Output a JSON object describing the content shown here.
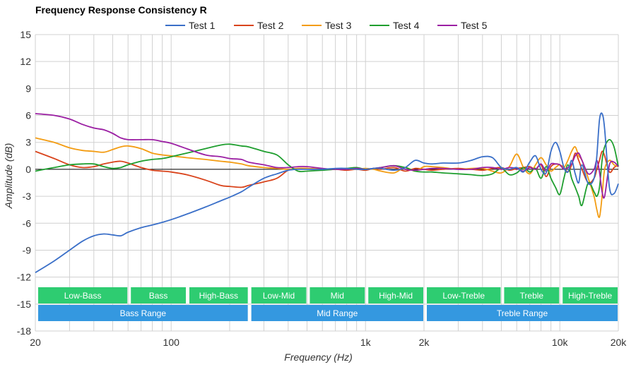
{
  "chart_data": {
    "type": "line",
    "title": "Frequency Response Consistency R",
    "xlabel": "Frequency (Hz)",
    "ylabel": "Amplitude (dB)",
    "x_scale": "log",
    "xlim": [
      20,
      20000
    ],
    "ylim": [
      -18,
      15
    ],
    "grid": true,
    "legend_position": "top-center",
    "x_ticks": [
      {
        "value": 20,
        "label": "20"
      },
      {
        "value": 100,
        "label": "100"
      },
      {
        "value": 1000,
        "label": "1k"
      },
      {
        "value": 2000,
        "label": "2k"
      },
      {
        "value": 10000,
        "label": "10k"
      },
      {
        "value": 20000,
        "label": "20k"
      }
    ],
    "y_ticks": [
      15,
      12,
      9,
      6,
      3,
      0,
      -3,
      -6,
      -9,
      -12,
      -15,
      -18
    ],
    "bands": [
      {
        "row": "upper",
        "label": "Low-Bass",
        "from": 20,
        "to": 60,
        "color": "#2ecc71"
      },
      {
        "row": "upper",
        "label": "Bass",
        "from": 60,
        "to": 120,
        "color": "#2ecc71"
      },
      {
        "row": "upper",
        "label": "High-Bass",
        "from": 120,
        "to": 250,
        "color": "#2ecc71"
      },
      {
        "row": "upper",
        "label": "Low-Mid",
        "from": 250,
        "to": 500,
        "color": "#2ecc71"
      },
      {
        "row": "upper",
        "label": "Mid",
        "from": 500,
        "to": 1000,
        "color": "#2ecc71"
      },
      {
        "row": "upper",
        "label": "High-Mid",
        "from": 1000,
        "to": 2000,
        "color": "#2ecc71"
      },
      {
        "row": "upper",
        "label": "Low-Treble",
        "from": 2000,
        "to": 5000,
        "color": "#2ecc71"
      },
      {
        "row": "upper",
        "label": "Treble",
        "from": 5000,
        "to": 10000,
        "color": "#2ecc71"
      },
      {
        "row": "upper",
        "label": "High-Treble",
        "from": 10000,
        "to": 20000,
        "color": "#2ecc71"
      },
      {
        "row": "lower",
        "label": "Bass Range",
        "from": 20,
        "to": 250,
        "color": "#3498e0"
      },
      {
        "row": "lower",
        "label": "Mid Range",
        "from": 250,
        "to": 2000,
        "color": "#3498e0"
      },
      {
        "row": "lower",
        "label": "Treble Range",
        "from": 2000,
        "to": 20000,
        "color": "#3498e0"
      }
    ],
    "series": [
      {
        "name": "Test 1",
        "color": "#3a6fc8",
        "x": [
          20,
          25,
          30,
          35,
          40,
          45,
          50,
          55,
          60,
          70,
          80,
          90,
          100,
          120,
          150,
          180,
          200,
          230,
          250,
          300,
          350,
          400,
          450,
          500,
          600,
          700,
          800,
          900,
          1000,
          1100,
          1200,
          1400,
          1600,
          1800,
          2000,
          2200,
          2500,
          3000,
          3500,
          4000,
          4500,
          5000,
          5500,
          6000,
          6500,
          7000,
          7500,
          8000,
          8500,
          9000,
          9500,
          10000,
          10500,
          11000,
          11500,
          12000,
          12500,
          13000,
          14000,
          15000,
          15500,
          16000,
          16500,
          17000,
          18000,
          19000,
          20000
        ],
        "y": [
          -11.5,
          -10.2,
          -9.0,
          -8.0,
          -7.4,
          -7.2,
          -7.3,
          -7.4,
          -7.0,
          -6.5,
          -6.2,
          -5.9,
          -5.6,
          -5.0,
          -4.2,
          -3.5,
          -3.1,
          -2.5,
          -2.0,
          -1.0,
          -0.5,
          -0.1,
          0.0,
          0.0,
          0.0,
          0.1,
          0.1,
          0.0,
          0.0,
          0.1,
          0.1,
          -0.1,
          0.2,
          1.0,
          0.7,
          0.6,
          0.7,
          0.7,
          1.0,
          1.4,
          1.3,
          0.2,
          0.0,
          0.2,
          -0.3,
          0.8,
          1.5,
          0.0,
          -0.4,
          2.0,
          3.0,
          2.0,
          0.2,
          -0.3,
          1.0,
          -0.5,
          -1.5,
          0.5,
          -1.6,
          -1.0,
          1.5,
          5.5,
          6.2,
          4.5,
          -2.0,
          -2.7,
          -1.6
        ]
      },
      {
        "name": "Test 2",
        "color": "#d9441c",
        "x": [
          20,
          25,
          30,
          35,
          40,
          45,
          50,
          55,
          60,
          70,
          80,
          90,
          100,
          120,
          150,
          180,
          200,
          230,
          250,
          300,
          350,
          400,
          450,
          500,
          600,
          700,
          800,
          900,
          1000,
          1100,
          1200,
          1400,
          1600,
          1800,
          2000,
          2200,
          2500,
          3000,
          3500,
          4000,
          4500,
          5000,
          5500,
          6000,
          6500,
          7000,
          7500,
          8000,
          8500,
          9000,
          9500,
          10000,
          10500,
          11000,
          11500,
          12000,
          12500,
          13000,
          14000,
          15000,
          15500,
          16000,
          16500,
          17000,
          18000,
          19000,
          20000
        ],
        "y": [
          2.0,
          1.2,
          0.5,
          0.2,
          0.3,
          0.6,
          0.8,
          0.9,
          0.7,
          0.2,
          -0.1,
          -0.2,
          -0.3,
          -0.6,
          -1.2,
          -1.8,
          -1.9,
          -2.0,
          -1.8,
          -1.4,
          -1.0,
          -0.1,
          0.1,
          0.1,
          0.0,
          0.0,
          -0.1,
          0.0,
          -0.1,
          0.1,
          0.0,
          0.2,
          -0.2,
          0.1,
          0.0,
          -0.1,
          0.0,
          0.1,
          0.0,
          -0.1,
          0.1,
          0.2,
          -0.1,
          0.1,
          0.2,
          0.3,
          0.0,
          0.5,
          -0.8,
          0.3,
          0.6,
          0.5,
          0.2,
          -0.3,
          0.5,
          1.8,
          1.0,
          0.0,
          -1.5,
          -1.0,
          0.0,
          1.0,
          2.0,
          1.5,
          -0.3,
          0.2,
          0.5
        ]
      },
      {
        "name": "Test 3",
        "color": "#f39c12",
        "x": [
          20,
          25,
          30,
          35,
          40,
          45,
          50,
          55,
          60,
          70,
          80,
          90,
          100,
          120,
          150,
          180,
          200,
          230,
          250,
          300,
          350,
          400,
          450,
          500,
          600,
          700,
          800,
          900,
          1000,
          1100,
          1200,
          1400,
          1600,
          1800,
          2000,
          2200,
          2500,
          3000,
          3500,
          4000,
          4500,
          5000,
          5500,
          6000,
          6500,
          7000,
          7500,
          8000,
          8500,
          9000,
          9500,
          10000,
          10500,
          11000,
          11500,
          12000,
          12500,
          13000,
          14000,
          15000,
          15500,
          16000,
          16500,
          17000,
          18000,
          19000,
          20000
        ],
        "y": [
          3.5,
          3.0,
          2.4,
          2.1,
          2.0,
          1.9,
          2.2,
          2.5,
          2.6,
          2.3,
          1.8,
          1.6,
          1.5,
          1.3,
          1.1,
          0.9,
          0.8,
          0.6,
          0.4,
          0.2,
          0.1,
          0.0,
          0.1,
          0.1,
          0.0,
          0.0,
          0.1,
          0.0,
          0.1,
          0.0,
          -0.2,
          -0.4,
          0.2,
          -0.2,
          0.3,
          0.3,
          0.2,
          0.0,
          0.1,
          0.1,
          -0.2,
          -0.4,
          0.3,
          1.7,
          0.2,
          -0.5,
          0.5,
          1.3,
          0.5,
          -0.2,
          0.2,
          0.5,
          0.2,
          1.0,
          2.0,
          2.5,
          1.5,
          1.0,
          -1.0,
          -3.0,
          -4.5,
          -5.3,
          -3.0,
          0.0,
          1.0,
          0.5,
          0.3
        ]
      },
      {
        "name": "Test 4",
        "color": "#1e9e2e",
        "x": [
          20,
          25,
          30,
          35,
          40,
          45,
          50,
          55,
          60,
          70,
          80,
          90,
          100,
          120,
          150,
          180,
          200,
          230,
          250,
          300,
          350,
          400,
          450,
          500,
          600,
          700,
          800,
          900,
          1000,
          1100,
          1200,
          1400,
          1600,
          1800,
          2000,
          2200,
          2500,
          3000,
          3500,
          4000,
          4500,
          5000,
          5500,
          6000,
          6500,
          7000,
          7500,
          8000,
          8500,
          9000,
          9500,
          10000,
          10500,
          11000,
          11500,
          12000,
          12500,
          13000,
          14000,
          15000,
          15500,
          16000,
          16500,
          17000,
          18000,
          19000,
          20000
        ],
        "y": [
          -0.2,
          0.2,
          0.5,
          0.6,
          0.6,
          0.3,
          0.1,
          0.2,
          0.5,
          0.9,
          1.1,
          1.2,
          1.4,
          1.8,
          2.3,
          2.7,
          2.8,
          2.6,
          2.5,
          2.0,
          1.6,
          0.5,
          -0.2,
          -0.2,
          -0.1,
          0.0,
          0.1,
          0.2,
          0.0,
          0.1,
          0.2,
          0.4,
          0.2,
          -0.2,
          -0.3,
          -0.3,
          -0.4,
          -0.5,
          -0.6,
          -0.7,
          -0.5,
          0.1,
          -0.6,
          -0.4,
          0.2,
          -0.3,
          0.1,
          -1.0,
          0.3,
          -1.0,
          -2.0,
          -2.8,
          -1.0,
          0.5,
          -1.0,
          -2.0,
          -3.0,
          -4.0,
          -1.5,
          -2.5,
          -3.0,
          -2.0,
          1.0,
          2.5,
          3.3,
          2.5,
          0.3
        ]
      },
      {
        "name": "Test 5",
        "color": "#9b1fa3",
        "x": [
          20,
          25,
          30,
          35,
          40,
          45,
          50,
          55,
          60,
          70,
          80,
          90,
          100,
          120,
          150,
          180,
          200,
          230,
          250,
          300,
          350,
          400,
          450,
          500,
          600,
          700,
          800,
          900,
          1000,
          1100,
          1200,
          1400,
          1600,
          1800,
          2000,
          2200,
          2500,
          3000,
          3500,
          4000,
          4500,
          5000,
          5500,
          6000,
          6500,
          7000,
          7500,
          8000,
          8500,
          9000,
          9500,
          10000,
          10500,
          11000,
          11500,
          12000,
          12500,
          13000,
          14000,
          15000,
          15500,
          16000,
          16500,
          17000,
          18000,
          19000,
          20000
        ],
        "y": [
          6.2,
          6.0,
          5.6,
          5.0,
          4.6,
          4.4,
          4.0,
          3.5,
          3.3,
          3.3,
          3.3,
          3.1,
          2.9,
          2.3,
          1.6,
          1.4,
          1.2,
          1.1,
          0.8,
          0.5,
          0.2,
          0.2,
          0.3,
          0.3,
          0.1,
          0.0,
          0.0,
          0.1,
          0.0,
          0.1,
          0.2,
          0.4,
          0.0,
          -0.1,
          0.0,
          0.1,
          0.1,
          0.0,
          0.0,
          0.2,
          0.2,
          0.0,
          0.2,
          0.1,
          -0.2,
          0.2,
          0.0,
          0.6,
          -0.2,
          0.6,
          0.6,
          0.5,
          0.0,
          0.2,
          0.6,
          1.5,
          1.8,
          1.0,
          -0.5,
          0.0,
          1.0,
          -0.3,
          -2.5,
          -3.0,
          0.5,
          0.8,
          0.3
        ]
      }
    ]
  }
}
